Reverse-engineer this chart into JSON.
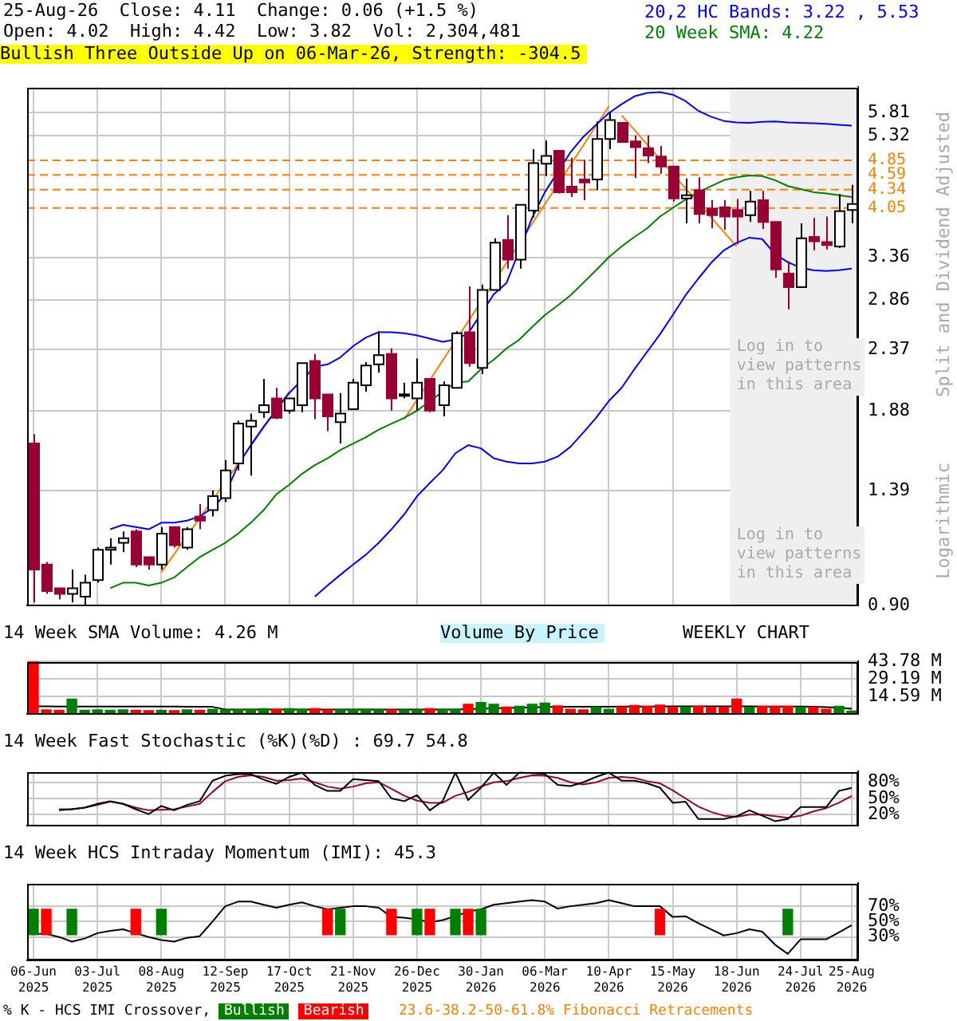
{
  "chart_data": [
    {
      "type": "candlestick",
      "categories": [
        "06-Jun 2025",
        null,
        null,
        null,
        null,
        "03-Jul 2025",
        null,
        null,
        null,
        null,
        "08-Aug 2025",
        null,
        null,
        null,
        null,
        "12-Sep 2025",
        null,
        null,
        null,
        null,
        "17-Oct 2025",
        null,
        null,
        null,
        null,
        "21-Nov 2025",
        null,
        null,
        null,
        null,
        "26-Dec 2025",
        null,
        null,
        null,
        null,
        "30-Jan 2026",
        null,
        null,
        null,
        null,
        "06-Mar 2026",
        null,
        null,
        null,
        null,
        "10-Apr 2026",
        null,
        null,
        null,
        null,
        "15-May 2026",
        null,
        null,
        null,
        null,
        "18-Jun 2026",
        null,
        null,
        null,
        null,
        "24-Jul 2026",
        null,
        null,
        null,
        "25-Aug 2026"
      ],
      "ohlc": [
        [
          1.66,
          1.72,
          0.91,
          1.03
        ],
        [
          1.05,
          1.06,
          0.94,
          0.95
        ],
        [
          0.96,
          0.96,
          0.92,
          0.94
        ],
        [
          0.94,
          1.03,
          0.91,
          0.96
        ],
        [
          0.93,
          1.01,
          0.9,
          0.98
        ],
        [
          0.99,
          1.12,
          0.98,
          1.11
        ],
        [
          1.11,
          1.16,
          1.05,
          1.12
        ],
        [
          1.14,
          1.19,
          1.1,
          1.16
        ],
        [
          1.19,
          1.2,
          1.04,
          1.05
        ],
        [
          1.08,
          1.08,
          1.03,
          1.05
        ],
        [
          1.05,
          1.21,
          1.03,
          1.18
        ],
        [
          1.21,
          1.21,
          1.12,
          1.13
        ],
        [
          1.12,
          1.21,
          1.11,
          1.2
        ],
        [
          1.26,
          1.32,
          1.2,
          1.24
        ],
        [
          1.29,
          1.39,
          1.26,
          1.36
        ],
        [
          1.35,
          1.56,
          1.33,
          1.5
        ],
        [
          1.54,
          1.81,
          1.5,
          1.79
        ],
        [
          1.77,
          1.86,
          1.47,
          1.81
        ],
        [
          1.87,
          2.12,
          1.83,
          1.92
        ],
        [
          1.97,
          2.05,
          1.82,
          1.83
        ],
        [
          1.88,
          1.97,
          1.86,
          1.97
        ],
        [
          1.92,
          2.25,
          1.87,
          2.25
        ],
        [
          2.27,
          2.33,
          1.82,
          1.97
        ],
        [
          2.0,
          2.0,
          1.74,
          1.84
        ],
        [
          1.8,
          2.01,
          1.66,
          1.86
        ],
        [
          1.89,
          2.12,
          1.89,
          2.09
        ],
        [
          2.07,
          2.26,
          2.02,
          2.23
        ],
        [
          2.24,
          2.54,
          2.17,
          2.32
        ],
        [
          2.33,
          2.38,
          1.88,
          1.97
        ],
        [
          1.99,
          2.09,
          1.97,
          2.0
        ],
        [
          1.97,
          2.29,
          1.88,
          2.09
        ],
        [
          2.12,
          2.12,
          1.87,
          1.88
        ],
        [
          1.92,
          2.1,
          1.84,
          2.07
        ],
        [
          2.05,
          2.54,
          2.05,
          2.52
        ],
        [
          2.53,
          3.01,
          2.22,
          2.25
        ],
        [
          2.21,
          3.03,
          2.16,
          2.97
        ],
        [
          2.97,
          3.61,
          2.97,
          3.55
        ],
        [
          3.59,
          3.94,
          3.22,
          3.33
        ],
        [
          3.33,
          4.1,
          3.22,
          4.1
        ],
        [
          4.01,
          5.06,
          3.91,
          4.8
        ],
        [
          4.79,
          5.23,
          4.57,
          4.93
        ],
        [
          5.03,
          5.03,
          4.28,
          4.3
        ],
        [
          4.39,
          4.9,
          4.22,
          4.3
        ],
        [
          4.51,
          4.86,
          4.17,
          4.46
        ],
        [
          4.51,
          5.62,
          4.33,
          5.26
        ],
        [
          5.26,
          5.81,
          5.06,
          5.65
        ],
        [
          5.59,
          5.59,
          5.2,
          5.2
        ],
        [
          5.21,
          5.33,
          4.54,
          5.1
        ],
        [
          5.08,
          5.33,
          4.8,
          4.94
        ],
        [
          4.92,
          5.12,
          4.61,
          4.74
        ],
        [
          4.74,
          4.74,
          4.15,
          4.2
        ],
        [
          4.2,
          4.53,
          3.82,
          4.25
        ],
        [
          4.33,
          4.55,
          3.82,
          3.96
        ],
        [
          4.04,
          4.17,
          3.75,
          3.94
        ],
        [
          4.06,
          4.17,
          3.73,
          3.92
        ],
        [
          4.02,
          4.19,
          3.53,
          3.92
        ],
        [
          3.94,
          4.32,
          3.84,
          4.15
        ],
        [
          4.17,
          4.32,
          3.74,
          3.84
        ],
        [
          3.84,
          3.84,
          3.11,
          3.21
        ],
        [
          3.16,
          3.31,
          2.76,
          3.0
        ],
        [
          3.0,
          3.82,
          3.0,
          3.61
        ],
        [
          3.63,
          3.9,
          3.45,
          3.57
        ],
        [
          3.56,
          3.92,
          3.46,
          3.52
        ],
        [
          3.5,
          4.27,
          3.48,
          4.0
        ],
        [
          4.02,
          4.42,
          3.82,
          4.11
        ]
      ],
      "series": [
        {
          "type": "line",
          "name": "20,2 HC Bands: 3.22 , 5.53",
          "color": "#0000ff",
          "values": [
            null,
            null,
            null,
            null,
            null,
            null,
            1.2,
            1.22,
            1.21,
            1.2,
            1.23,
            1.23,
            1.24,
            1.26,
            1.3,
            1.37,
            1.53,
            1.65,
            1.77,
            null,
            2.01,
            null,
            2.22,
            2.24,
            2.3,
            2.4,
            2.48,
            2.53,
            2.53,
            2.52,
            2.5,
            2.47,
            2.44,
            2.46,
            2.52,
            null,
            2.92,
            3.05,
            null,
            3.9,
            4.3,
            null,
            5.0,
            5.3,
            5.55,
            5.8,
            6.0,
            6.18,
            6.26,
            6.28,
            6.22,
            6.07,
            5.85,
            5.72,
            5.63,
            5.6,
            5.59,
            5.61,
            5.62,
            5.6,
            5.59,
            5.58,
            5.57,
            5.55,
            5.53
          ]
        },
        {
          "type": "line",
          "color": "#0000ff",
          "values": [
            null,
            null,
            null,
            null,
            null,
            null,
            null,
            null,
            null,
            null,
            null,
            null,
            null,
            null,
            null,
            null,
            null,
            null,
            null,
            null,
            null,
            null,
            0.93,
            0.97,
            1.01,
            1.05,
            1.09,
            1.14,
            1.2,
            1.27,
            1.36,
            1.43,
            1.5,
            1.6,
            1.65,
            1.63,
            1.57,
            1.55,
            1.54,
            1.54,
            1.55,
            1.58,
            1.64,
            1.73,
            1.83,
            1.95,
            2.05,
            2.2,
            2.35,
            2.51,
            2.7,
            2.91,
            3.1,
            3.29,
            3.45,
            3.55,
            3.62,
            3.6,
            3.4,
            3.3,
            3.23,
            3.2,
            3.19,
            3.2,
            3.22
          ]
        },
        {
          "type": "line",
          "name": "20 Week SMA: 4.22",
          "color": "#008000",
          "values": [
            null,
            null,
            null,
            null,
            null,
            null,
            0.96,
            0.98,
            0.98,
            0.97,
            0.98,
            1.0,
            1.04,
            1.08,
            1.11,
            1.14,
            1.18,
            1.23,
            1.29,
            1.37,
            1.42,
            1.48,
            1.53,
            1.57,
            1.62,
            1.66,
            1.7,
            1.75,
            1.79,
            1.83,
            1.88,
            1.95,
            2.02,
            2.09,
            2.1,
            2.2,
            2.28,
            2.38,
            2.46,
            2.58,
            2.7,
            2.8,
            2.91,
            3.05,
            3.2,
            3.36,
            3.5,
            3.63,
            3.75,
            3.92,
            4.05,
            4.18,
            4.3,
            4.4,
            4.5,
            4.55,
            4.58,
            4.57,
            4.5,
            4.4,
            4.35,
            4.3,
            4.28,
            4.25,
            4.22
          ]
        },
        {
          "type": "line",
          "color": "#ff8000",
          "values": [
            null,
            null,
            null,
            null,
            null,
            null,
            null,
            null,
            null,
            null,
            1.02,
            null,
            null,
            null,
            null,
            null,
            null,
            null,
            null,
            null,
            2.02,
            null,
            null,
            null,
            null,
            null,
            null,
            null,
            null,
            null,
            null,
            null,
            null,
            null,
            null,
            null,
            null,
            null,
            null,
            null,
            null,
            null,
            null,
            null,
            null,
            null,
            null,
            null,
            null,
            null,
            null,
            null,
            null,
            null,
            null,
            null,
            null,
            null,
            null,
            null,
            null,
            null,
            null,
            null,
            null
          ]
        },
        {
          "type": "line",
          "color": "#ff8000",
          "values": [
            null,
            null,
            null,
            null,
            null,
            null,
            null,
            null,
            null,
            null,
            null,
            null,
            null,
            null,
            null,
            null,
            null,
            null,
            null,
            null,
            null,
            null,
            null,
            null,
            null,
            null,
            null,
            null,
            null,
            1.82,
            null,
            null,
            null,
            null,
            null,
            null,
            null,
            null,
            null,
            null,
            null,
            null,
            null,
            null,
            null,
            5.95,
            null,
            null,
            null,
            null,
            null,
            null,
            null,
            null,
            null,
            null,
            null,
            null,
            null,
            null,
            null,
            null,
            null,
            null,
            null
          ]
        },
        {
          "type": "line",
          "color": "#ff8000",
          "values": [
            null,
            null,
            null,
            null,
            null,
            null,
            null,
            null,
            null,
            null,
            null,
            null,
            null,
            null,
            null,
            null,
            null,
            null,
            null,
            null,
            null,
            null,
            null,
            null,
            null,
            null,
            null,
            null,
            null,
            null,
            null,
            null,
            null,
            null,
            null,
            null,
            null,
            null,
            null,
            null,
            null,
            null,
            null,
            null,
            null,
            null,
            5.75,
            null,
            null,
            null,
            null,
            null,
            null,
            null,
            null,
            3.5,
            null,
            null,
            null,
            null,
            null,
            null,
            null,
            null,
            null
          ]
        }
      ],
      "ylim": [
        0.9,
        6.4
      ],
      "yticks": [
        {
          "value": 0.9,
          "label": "0.90"
        },
        1.39,
        1.88,
        2.37,
        2.86,
        3.36,
        5.32,
        5.81
      ],
      "log": true,
      "grid": true,
      "legend": "top right",
      "tick_labels": "y",
      "bands": [
        {
          "axis": "x",
          "from": "18-Jun 2026",
          "to": "25-Aug 2026",
          "color": "#efefef"
        }
      ],
      "ref_lines": [
        {
          "axis": "y",
          "value": 4.85,
          "label": "4.85",
          "color": "#ff8000",
          "line_style": "dashed"
        },
        {
          "axis": "y",
          "value": 4.59,
          "label": "4.59",
          "color": "#ff8000",
          "line_style": "dashed"
        },
        {
          "axis": "y",
          "value": 4.34,
          "label": "4.34",
          "color": "#ff8000",
          "line_style": "dashed"
        },
        {
          "axis": "y",
          "value": 4.05,
          "label": "4.05",
          "color": "#ff8000",
          "line_style": "dashed"
        }
      ],
      "annotations": [
        "25-Aug-26  Close: 4.11  Change: 0.06 (+1.5 %)",
        "Open: 4.02  High: 4.42  Low: 3.82  Vol: 2,304,481",
        "Bullish Three Outside Up on 06-Mar-26, Strength: -304.5",
        "Log in to view patterns in this area",
        "Log in to view patterns in this area",
        "Split and Dividend Adjusted",
        "Logarithmic",
        "23.6-38.2-50-61.8% Fibonacci Retracements"
      ]
    },
    {
      "type": "bar",
      "title": "14 Week SMA Volume: 4.26 M",
      "categories": [
        "06-Jun 2025",
        null,
        null,
        null,
        null,
        "03-Jul 2025",
        null,
        null,
        null,
        null,
        "08-Aug 2025",
        null,
        null,
        null,
        null,
        "12-Sep 2025",
        null,
        null,
        null,
        null,
        "17-Oct 2025",
        null,
        null,
        null,
        null,
        "21-Nov 2025",
        null,
        null,
        null,
        null,
        "26-Dec 2025",
        null,
        null,
        null,
        null,
        "30-Jan 2026",
        null,
        null,
        null,
        null,
        "06-Mar 2026",
        null,
        null,
        null,
        null,
        "10-Apr 2026",
        null,
        null,
        null,
        null,
        "15-May 2026",
        null,
        null,
        null,
        null,
        "18-Jun 2026",
        null,
        null,
        null,
        null,
        "24-Jul 2026",
        null,
        null,
        null,
        "25-Aug 2026"
      ],
      "series": [
        {
          "values": [
            43.78,
            3.3,
            2.9,
            12.2,
            2.9,
            3.3,
            2.9,
            3.3,
            2.9,
            2.6,
            2.9,
            2.6,
            3.3,
            2.9,
            3.8,
            3.3,
            3.3,
            3.8,
            4.2,
            3.8,
            4.2,
            3.8,
            4.2,
            3.3,
            3.3,
            3.8,
            3.8,
            3.3,
            3.3,
            3.3,
            3.3,
            4.2,
            3.8,
            3.8,
            8.0,
            9.5,
            8.0,
            5.6,
            6.2,
            8.0,
            8.9,
            6.6,
            3.8,
            3.3,
            5.4,
            3.8,
            5.8,
            7.0,
            6.2,
            7.2,
            5.4,
            5.4,
            6.2,
            5.4,
            5.4,
            12.2,
            5.4,
            6.2,
            6.2,
            6.2,
            5.4,
            5.4,
            3.8,
            6.2,
            2.3
          ],
          "colors": [
            "#ff0000",
            "#ff0000",
            "#ff0000",
            "#008000",
            "#008000",
            "#008000",
            "#008000",
            "#008000",
            "#ff0000",
            "#ff0000",
            "#008000",
            "#ff0000",
            "#008000",
            "#ff0000",
            "#008000",
            "#008000",
            "#008000",
            "#008000",
            "#008000",
            "#ff0000",
            "#008000",
            "#008000",
            "#ff0000",
            "#ff0000",
            "#008000",
            "#008000",
            "#008000",
            "#008000",
            "#ff0000",
            "#008000",
            "#008000",
            "#ff0000",
            "#008000",
            "#008000",
            "#ff0000",
            "#008000",
            "#008000",
            "#ff0000",
            "#008000",
            "#008000",
            "#008000",
            "#ff0000",
            "#ff0000",
            "#ff0000",
            "#008000",
            "#008000",
            "#ff0000",
            "#ff0000",
            "#ff0000",
            "#ff0000",
            "#ff0000",
            "#008000",
            "#ff0000",
            "#ff0000",
            "#ff0000",
            "#ff0000",
            "#008000",
            "#ff0000",
            "#ff0000",
            "#ff0000",
            "#008000",
            "#ff0000",
            "#ff0000",
            "#008000",
            "#008000"
          ]
        },
        {
          "type": "line",
          "color": "#000000",
          "values": [
            6.2,
            6.2,
            6.1,
            6.1,
            6.1,
            6.0,
            6.0,
            6.0,
            6.0,
            6.0,
            6.0,
            6.0,
            5.9,
            5.9,
            5.8,
            3.5,
            3.5,
            3.5,
            3.5,
            3.5,
            3.5,
            3.5,
            3.5,
            3.5,
            3.5,
            3.5,
            3.5,
            3.5,
            3.6,
            3.6,
            3.6,
            3.6,
            3.6,
            3.6,
            3.8,
            4.2,
            4.6,
            4.8,
            5.0,
            5.3,
            5.6,
            5.8,
            5.8,
            5.8,
            5.9,
            5.9,
            6.0,
            6.1,
            6.1,
            6.1,
            6.2,
            6.2,
            6.2,
            6.2,
            6.2,
            6.2,
            6.2,
            6.1,
            6.0,
            6.0,
            6.0,
            5.8,
            5.5,
            5.0,
            4.26
          ]
        }
      ],
      "ylim": [
        0,
        43.78
      ],
      "yticks": [
        {
          "value": 14.59,
          "label": "14.59 M"
        },
        {
          "value": 29.19,
          "label": "29.19 M"
        },
        {
          "value": 43.78,
          "label": "43.78 M"
        }
      ],
      "grid": true,
      "tick_labels": "y",
      "annotations": [
        "Volume By Price",
        "WEEKLY CHART"
      ]
    },
    {
      "type": "line",
      "title": "14 Week Fast Stochastic (%K)(%D) : 69.7 54.8",
      "categories": [
        "06-Jun 2025",
        null,
        null,
        null,
        null,
        "03-Jul 2025",
        null,
        null,
        null,
        null,
        "08-Aug 2025",
        null,
        null,
        null,
        null,
        "12-Sep 2025",
        null,
        null,
        null,
        null,
        "17-Oct 2025",
        null,
        null,
        null,
        null,
        "21-Nov 2025",
        null,
        null,
        null,
        null,
        "26-Dec 2025",
        null,
        null,
        null,
        null,
        "30-Jan 2026",
        null,
        null,
        null,
        null,
        "06-Mar 2026",
        null,
        null,
        null,
        null,
        "10-Apr 2026",
        null,
        null,
        null,
        null,
        "15-May 2026",
        null,
        null,
        null,
        null,
        "18-Jun 2026",
        null,
        null,
        null,
        null,
        "24-Jul 2026",
        null,
        null,
        null,
        "25-Aug 2026"
      ],
      "series": [
        {
          "color": "#000000",
          "values": [
            null,
            null,
            28,
            30,
            33,
            40,
            45,
            40,
            30,
            21,
            36,
            28,
            38,
            45,
            83,
            92,
            95,
            95,
            85,
            77,
            90,
            98,
            75,
            64,
            64,
            86,
            84,
            82,
            50,
            45,
            56,
            28,
            45,
            98,
            47,
            70,
            98,
            75,
            98,
            97,
            95,
            75,
            73,
            80,
            90,
            98,
            83,
            83,
            78,
            70,
            42,
            44,
            12,
            12,
            12,
            17,
            28,
            18,
            8,
            12,
            34,
            34,
            34,
            64,
            69.7
          ]
        },
        {
          "color": "#990033",
          "values": [
            null,
            null,
            30,
            30,
            33,
            38,
            44,
            40,
            33,
            28,
            29,
            30,
            35,
            40,
            62,
            82,
            90,
            93,
            90,
            83,
            84,
            87,
            80,
            72,
            68,
            72,
            78,
            80,
            68,
            55,
            46,
            42,
            42,
            55,
            62,
            72,
            80,
            82,
            88,
            93,
            92,
            88,
            80,
            76,
            80,
            88,
            90,
            88,
            82,
            78,
            65,
            50,
            35,
            25,
            18,
            16,
            20,
            20,
            17,
            14,
            18,
            26,
            32,
            42,
            54.8
          ]
        }
      ],
      "ylim": [
        0,
        100
      ],
      "yticks": [
        {
          "value": 20,
          "label": "20%"
        },
        {
          "value": 50,
          "label": "50%"
        },
        {
          "value": 80,
          "label": "80%"
        }
      ],
      "grid": true,
      "tick_labels": "y"
    },
    {
      "type": "line",
      "title": "14 Week HCS Intraday Momentum (IMI): 45.3",
      "categories": [
        "06-Jun 2025",
        null,
        null,
        null,
        null,
        "03-Jul 2025",
        null,
        null,
        null,
        null,
        "08-Aug 2025",
        null,
        null,
        null,
        null,
        "12-Sep 2025",
        null,
        null,
        null,
        null,
        "17-Oct 2025",
        null,
        null,
        null,
        null,
        "21-Nov 2025",
        null,
        null,
        null,
        null,
        "26-Dec 2025",
        null,
        null,
        null,
        null,
        "30-Jan 2026",
        null,
        null,
        null,
        null,
        "06-Mar 2026",
        null,
        null,
        null,
        null,
        "10-Apr 2026",
        null,
        null,
        null,
        null,
        "15-May 2026",
        null,
        null,
        null,
        null,
        "18-Jun 2026",
        null,
        null,
        null,
        null,
        "24-Jul 2026",
        null,
        null,
        null,
        "25-Aug 2026"
      ],
      "series": [
        {
          "type": "bar",
          "name": "Bullish",
          "color": "#008000",
          "values": [
            33,
            null,
            null,
            33,
            null,
            null,
            null,
            null,
            null,
            null,
            33,
            null,
            null,
            null,
            null,
            null,
            null,
            null,
            null,
            null,
            null,
            null,
            null,
            null,
            33,
            null,
            null,
            null,
            null,
            null,
            33,
            null,
            null,
            33,
            null,
            33,
            null,
            null,
            null,
            null,
            null,
            null,
            null,
            null,
            null,
            null,
            null,
            null,
            null,
            null,
            null,
            null,
            null,
            null,
            null,
            null,
            null,
            null,
            null,
            33,
            null,
            null,
            null,
            null,
            null
          ],
          "base": [
            33,
            null,
            null,
            33,
            null,
            null,
            null,
            null,
            null,
            null,
            33,
            null,
            null,
            null,
            null,
            null,
            null,
            null,
            null,
            null,
            null,
            null,
            null,
            null,
            33,
            null,
            null,
            null,
            null,
            null,
            33,
            null,
            null,
            33,
            null,
            33,
            null,
            null,
            null,
            null,
            null,
            null,
            null,
            null,
            null,
            null,
            null,
            null,
            null,
            null,
            null,
            null,
            null,
            null,
            null,
            null,
            null,
            null,
            null,
            33,
            null,
            null,
            null,
            null,
            null
          ]
        },
        {
          "type": "bar",
          "name": "Bearish",
          "color": "#ff0000",
          "values": [
            null,
            33,
            null,
            null,
            null,
            null,
            null,
            null,
            33,
            null,
            null,
            null,
            null,
            null,
            null,
            null,
            null,
            null,
            null,
            null,
            null,
            null,
            null,
            33,
            null,
            null,
            null,
            null,
            33,
            null,
            null,
            33,
            null,
            null,
            33,
            null,
            null,
            null,
            null,
            null,
            null,
            null,
            null,
            null,
            null,
            null,
            null,
            null,
            null,
            33,
            null,
            null,
            null,
            null,
            null,
            null,
            null,
            null,
            null,
            null,
            null,
            null,
            null,
            null,
            null
          ],
          "base": [
            null,
            33,
            null,
            null,
            null,
            null,
            null,
            null,
            33,
            null,
            null,
            null,
            null,
            null,
            null,
            null,
            null,
            null,
            null,
            null,
            null,
            null,
            null,
            33,
            null,
            null,
            null,
            null,
            33,
            null,
            null,
            33,
            null,
            null,
            33,
            null,
            null,
            null,
            null,
            null,
            null,
            null,
            null,
            null,
            null,
            null,
            null,
            null,
            null,
            33,
            null,
            null,
            null,
            null,
            null,
            null,
            null,
            null,
            null,
            null,
            null,
            null,
            null,
            null,
            null
          ]
        },
        {
          "color": "#000000",
          "values": [
            34,
            34,
            30,
            24,
            28,
            35,
            38,
            40,
            35,
            30,
            26,
            24,
            29,
            31,
            50,
            70,
            76,
            76,
            72,
            68,
            72,
            75,
            70,
            66,
            68,
            70,
            70,
            68,
            56,
            55,
            53,
            49,
            52,
            57,
            63,
            66,
            72,
            74,
            76,
            78,
            76,
            67,
            70,
            72,
            74,
            78,
            74,
            70,
            70,
            70,
            56,
            57,
            48,
            40,
            32,
            35,
            40,
            37,
            20,
            8,
            27,
            27,
            27,
            36,
            45.3
          ]
        }
      ],
      "ylim": [
        0,
        100
      ],
      "yticks": [
        {
          "value": 30,
          "label": "30%"
        },
        {
          "value": 50,
          "label": "50%"
        },
        {
          "value": 70,
          "label": "70%"
        }
      ],
      "grid": true,
      "legend": "bottom",
      "legend_title": "% K - HCS IMI Crossover,"
    }
  ]
}
